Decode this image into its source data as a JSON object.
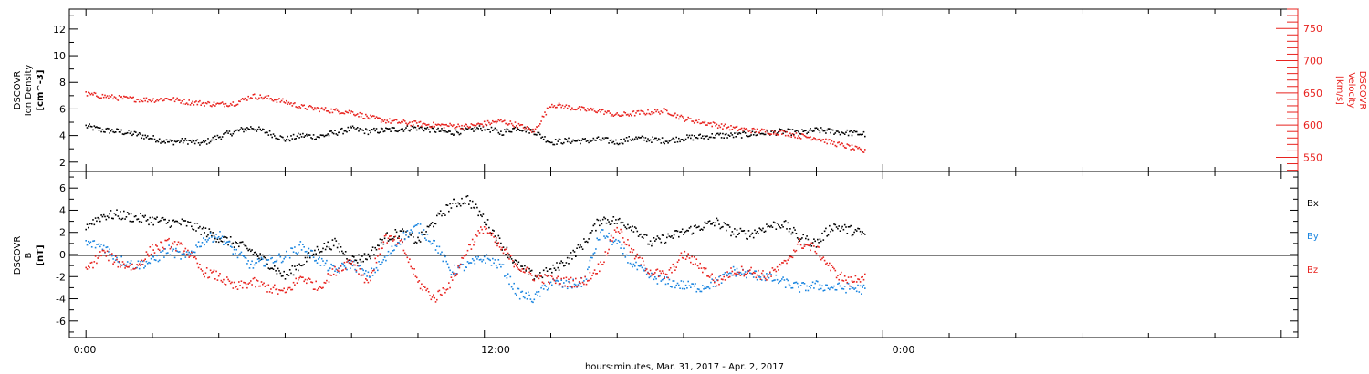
{
  "chart_data": [
    {
      "type": "scatter",
      "panel": "top",
      "left_ylabel": [
        "DSCOVR",
        "Ion Density",
        "[cm^-3]"
      ],
      "right_ylabel": [
        "DSCOVR",
        "Velocity",
        "[km/s]"
      ],
      "left_ylim": [
        1.3,
        13.5
      ],
      "right_ylim": [
        528,
        780
      ],
      "left_yticks": [
        2,
        4,
        6,
        8,
        10,
        12
      ],
      "right_yticks": [
        550,
        600,
        650,
        700,
        750
      ],
      "series": [
        {
          "axis": "left",
          "color": "#000000",
          "x": [
            0,
            0.5,
            1,
            1.5,
            2,
            2.5,
            3,
            3.5,
            4,
            4.5,
            5,
            5.5,
            6,
            6.5,
            7,
            7.5,
            8,
            8.5,
            9,
            9.5,
            10,
            10.5,
            11,
            11.5,
            12,
            12.5,
            13,
            13.5,
            14,
            14.5,
            15,
            15.5,
            16,
            16.5,
            17,
            17.5,
            18,
            18.5,
            19,
            19.5,
            20,
            20.5,
            21,
            21.5,
            22,
            22.5,
            23,
            23.5
          ],
          "y": [
            4.7,
            4.4,
            4.3,
            4.1,
            3.8,
            3.5,
            3.6,
            3.4,
            3.9,
            4.3,
            4.6,
            4.2,
            3.7,
            4.0,
            3.9,
            4.2,
            4.5,
            4.3,
            4.4,
            4.5,
            4.6,
            4.4,
            4.2,
            4.4,
            4.6,
            4.2,
            4.6,
            4.3,
            3.5,
            3.6,
            3.6,
            3.7,
            3.5,
            3.8,
            3.7,
            3.6,
            3.8,
            3.9,
            4.0,
            4.0,
            4.1,
            4.2,
            4.3,
            4.2,
            4.4,
            4.3,
            4.2,
            4.1
          ]
        },
        {
          "axis": "right",
          "color": "#e8231f",
          "x": [
            0,
            0.5,
            1,
            1.5,
            2,
            2.5,
            3,
            3.5,
            4,
            4.5,
            5,
            5.5,
            6,
            6.5,
            7,
            7.5,
            8,
            8.5,
            9,
            9.5,
            10,
            10.5,
            11,
            11.5,
            12,
            12.5,
            13,
            13.5,
            14,
            14.5,
            15,
            15.5,
            16,
            16.5,
            17,
            17.5,
            18,
            18.5,
            19,
            19.5,
            20,
            20.5,
            21,
            21.5,
            22,
            22.5,
            23,
            23.5
          ],
          "y": [
            648,
            645,
            642,
            640,
            639,
            641,
            636,
            634,
            632,
            634,
            645,
            642,
            636,
            628,
            625,
            622,
            620,
            612,
            607,
            604,
            602,
            600,
            599,
            598,
            602,
            606,
            600,
            590,
            632,
            628,
            624,
            622,
            615,
            618,
            620,
            622,
            610,
            605,
            600,
            595,
            592,
            590,
            588,
            583,
            580,
            572,
            566,
            558
          ]
        }
      ]
    },
    {
      "type": "scatter",
      "panel": "bottom",
      "left_ylabel": [
        "DSCOVR",
        "B",
        "[nT]"
      ],
      "ylim": [
        -7.5,
        7.5
      ],
      "yticks": [
        -6,
        -4,
        -2,
        0,
        2,
        4,
        6
      ],
      "legend": [
        "Bx",
        "By",
        "Bz"
      ],
      "series": [
        {
          "name": "Bx",
          "color": "#000000",
          "x": [
            0,
            0.5,
            1,
            1.5,
            2,
            2.5,
            3,
            3.5,
            4,
            4.5,
            5,
            5.5,
            6,
            6.5,
            7,
            7.5,
            8,
            8.5,
            9,
            9.5,
            10,
            10.5,
            11,
            11.5,
            12,
            12.5,
            13,
            13.5,
            14,
            14.5,
            15,
            15.5,
            16,
            16.5,
            17,
            17.5,
            18,
            18.5,
            19,
            19.5,
            20,
            20.5,
            21,
            21.5,
            22,
            22.5,
            23,
            23.5
          ],
          "y": [
            2.6,
            3.5,
            3.6,
            3.3,
            3.1,
            2.9,
            2.8,
            2.2,
            1.5,
            1.0,
            0.3,
            -0.8,
            -2.0,
            -0.8,
            0.5,
            1.0,
            -0.5,
            -0.2,
            1.5,
            2.0,
            1.2,
            3.0,
            4.5,
            5.0,
            3.2,
            1.0,
            -1.0,
            -2.0,
            -1.5,
            -0.5,
            1.0,
            3.2,
            3.0,
            2.5,
            1.0,
            1.5,
            2.0,
            2.5,
            2.9,
            2.0,
            1.8,
            2.5,
            2.8,
            1.5,
            1.0,
            2.6,
            2.2,
            1.8
          ]
        },
        {
          "name": "By",
          "color": "#1a85e0",
          "x": [
            0,
            0.5,
            1,
            1.5,
            2,
            2.5,
            3,
            3.5,
            4,
            4.5,
            5,
            5.5,
            6,
            6.5,
            7,
            7.5,
            8,
            8.5,
            9,
            9.5,
            10,
            10.5,
            11,
            11.5,
            12,
            12.5,
            13,
            13.5,
            14,
            14.5,
            15,
            15.5,
            16,
            16.5,
            17,
            17.5,
            18,
            18.5,
            19,
            19.5,
            20,
            20.5,
            21,
            21.5,
            22,
            22.5,
            23,
            23.5
          ],
          "y": [
            1.0,
            0.8,
            -0.5,
            -1.0,
            -0.6,
            0.4,
            -0.3,
            1.2,
            1.8,
            0.2,
            -1.0,
            -0.5,
            -0.2,
            0.8,
            -0.5,
            -1.5,
            -0.8,
            -2.0,
            -0.5,
            1.5,
            2.5,
            1.0,
            -1.5,
            -1.0,
            -0.3,
            -1.0,
            -3.5,
            -4.0,
            -2.5,
            -2.8,
            -2.5,
            2.0,
            1.0,
            -1.0,
            -2.0,
            -2.5,
            -2.8,
            -3.0,
            -2.5,
            -1.5,
            -1.8,
            -2.0,
            -2.5,
            -3.0,
            -2.8,
            -3.0,
            -3.0,
            -3.2
          ]
        },
        {
          "name": "Bz",
          "color": "#e8231f",
          "x": [
            0,
            0.5,
            1,
            1.5,
            2,
            2.5,
            3,
            3.5,
            4,
            4.5,
            5,
            5.5,
            6,
            6.5,
            7,
            7.5,
            8,
            8.5,
            9,
            9.5,
            10,
            10.5,
            11,
            11.5,
            12,
            12.5,
            13,
            13.5,
            14,
            14.5,
            15,
            15.5,
            16,
            16.5,
            17,
            17.5,
            18,
            18.5,
            19,
            19.5,
            20,
            20.5,
            21,
            21.5,
            22,
            22.5,
            23,
            23.5
          ],
          "y": [
            -1.5,
            0.2,
            -0.8,
            -1.2,
            0.5,
            1.0,
            0.5,
            -1.5,
            -2.0,
            -3.0,
            -2.5,
            -3.0,
            -3.5,
            -2.0,
            -3.0,
            -1.5,
            -0.5,
            -2.5,
            1.5,
            1.0,
            -2.5,
            -4.0,
            -2.5,
            0.5,
            2.5,
            0.5,
            -1.0,
            -2.0,
            -2.3,
            -2.5,
            -2.5,
            -1.0,
            2.5,
            0.0,
            -1.5,
            -2.0,
            0.0,
            -1.0,
            -2.5,
            -1.5,
            -1.5,
            -2.0,
            -1.0,
            1.0,
            0.5,
            -1.5,
            -2.5,
            -1.8
          ]
        }
      ]
    }
  ],
  "x_axis": {
    "ticklabels": [
      "0:00",
      "12:00",
      "0:00"
    ],
    "label": "hours:minutes, Mar. 31, 2017 - Apr.  2, 2017",
    "hours_range": [
      -0.5,
      36.5
    ]
  }
}
